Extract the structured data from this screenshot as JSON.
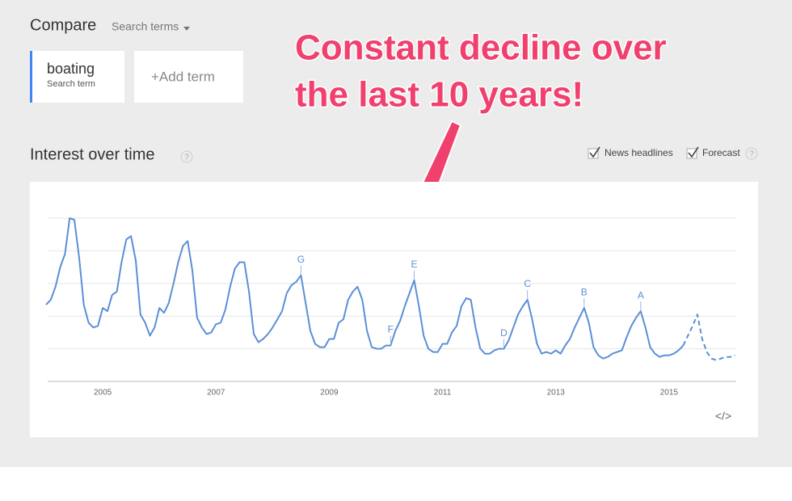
{
  "header": {
    "title": "Compare",
    "dropdown": "Search terms"
  },
  "term_caption": "Search term",
  "add_term": "+Add term",
  "callout": [
    "Constant decline over",
    "the last 10 years!"
  ],
  "section_title": "Interest over time",
  "help": "?",
  "news_option": "News headlines",
  "embed": "</>",
  "chart_data": {
    "type": "line",
    "categories": [
      null,
      null,
      null,
      null,
      null,
      null,
      null,
      null,
      null,
      null,
      null,
      null,
      "2005",
      null,
      null,
      null,
      null,
      null,
      null,
      null,
      null,
      null,
      null,
      null,
      null,
      null,
      null,
      null,
      null,
      null,
      null,
      null,
      null,
      null,
      null,
      null,
      "2007",
      null,
      null,
      null,
      null,
      null,
      null,
      null,
      null,
      null,
      null,
      null,
      null,
      null,
      null,
      null,
      null,
      null,
      null,
      null,
      null,
      null,
      null,
      null,
      "2009",
      null,
      null,
      null,
      null,
      null,
      null,
      null,
      null,
      null,
      null,
      null,
      null,
      null,
      null,
      null,
      null,
      null,
      null,
      null,
      null,
      null,
      null,
      null,
      "2011",
      null,
      null,
      null,
      null,
      null,
      null,
      null,
      null,
      null,
      null,
      null,
      null,
      null,
      null,
      null,
      null,
      null,
      null,
      null,
      null,
      null,
      null,
      null,
      "2013",
      null,
      null,
      null,
      null,
      null,
      null,
      null,
      null,
      null,
      null,
      null,
      null,
      null,
      null,
      null,
      null,
      null,
      null,
      null,
      null,
      null,
      null,
      null,
      "2015",
      null,
      null,
      null,
      null,
      null,
      null,
      null,
      null,
      null,
      null,
      null,
      null,
      null,
      null
    ],
    "series": [
      {
        "name": "boating",
        "color": "#5b8fd6",
        "dashed": false,
        "values": [
          47,
          50,
          58,
          70,
          78,
          100,
          99,
          76,
          47,
          36,
          33,
          34,
          45,
          43,
          53,
          55,
          73,
          87,
          89,
          74,
          41,
          36,
          28,
          33,
          45,
          42,
          48,
          60,
          73,
          83,
          86,
          68,
          39,
          33,
          29,
          30,
          35,
          36,
          44,
          58,
          69,
          73,
          73,
          55,
          29,
          24,
          26,
          29,
          33,
          38,
          43,
          54,
          59,
          61,
          65,
          48,
          31,
          23,
          21,
          21,
          26,
          26,
          36,
          38,
          50,
          55,
          58,
          50,
          31,
          21,
          20,
          20,
          22,
          22,
          31,
          37,
          46,
          54,
          62,
          46,
          28,
          20,
          18,
          18,
          23,
          23,
          30,
          34,
          46,
          51,
          50,
          33,
          20,
          17,
          17,
          19,
          20,
          20,
          25,
          33,
          41,
          46,
          50,
          38,
          23,
          17,
          18,
          17,
          19,
          17,
          22,
          26,
          33,
          39,
          45,
          36,
          21,
          16,
          14,
          15,
          17,
          18,
          19,
          27,
          34,
          39,
          43,
          33,
          21,
          17,
          15,
          16,
          16,
          17,
          19,
          22,
          null,
          null,
          null,
          null,
          null,
          null,
          null,
          null,
          null,
          null,
          null
        ]
      },
      {
        "name": "Forecast",
        "color": "#5b8fd6",
        "dashed": true,
        "values": [
          null,
          null,
          null,
          null,
          null,
          null,
          null,
          null,
          null,
          null,
          null,
          null,
          null,
          null,
          null,
          null,
          null,
          null,
          null,
          null,
          null,
          null,
          null,
          null,
          null,
          null,
          null,
          null,
          null,
          null,
          null,
          null,
          null,
          null,
          null,
          null,
          null,
          null,
          null,
          null,
          null,
          null,
          null,
          null,
          null,
          null,
          null,
          null,
          null,
          null,
          null,
          null,
          null,
          null,
          null,
          null,
          null,
          null,
          null,
          null,
          null,
          null,
          null,
          null,
          null,
          null,
          null,
          null,
          null,
          null,
          null,
          null,
          null,
          null,
          null,
          null,
          null,
          null,
          null,
          null,
          null,
          null,
          null,
          null,
          null,
          null,
          null,
          null,
          null,
          null,
          null,
          null,
          null,
          null,
          null,
          null,
          null,
          null,
          null,
          null,
          null,
          null,
          null,
          null,
          null,
          null,
          null,
          null,
          null,
          null,
          null,
          null,
          null,
          null,
          null,
          null,
          null,
          null,
          null,
          null,
          null,
          null,
          null,
          null,
          null,
          null,
          null,
          null,
          null,
          null,
          null,
          null,
          null,
          null,
          null,
          22,
          28,
          34,
          41,
          26,
          18,
          14,
          13,
          14,
          15,
          15,
          16
        ]
      }
    ],
    "annotations": [
      {
        "label": "G",
        "at": 54
      },
      {
        "label": "F",
        "at": 73
      },
      {
        "label": "E",
        "at": 78
      },
      {
        "label": "D",
        "at": 97
      },
      {
        "label": "C",
        "at": 102
      },
      {
        "label": "B",
        "at": 114
      },
      {
        "label": "A",
        "at": 126
      }
    ],
    "ylim": [
      0,
      100
    ],
    "yticks": [
      0,
      20,
      40,
      60,
      80,
      100
    ],
    "grid": true
  }
}
